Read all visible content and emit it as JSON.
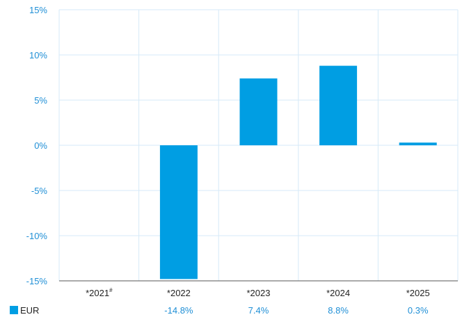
{
  "chart_data": {
    "type": "bar",
    "categories": [
      "*2021",
      "*2022",
      "*2023",
      "*2024",
      "*2025"
    ],
    "category_superscripts": [
      "#",
      "",
      "",
      "",
      ""
    ],
    "series": [
      {
        "name": "EUR",
        "values": [
          null,
          -14.8,
          7.4,
          8.8,
          0.3
        ],
        "labels": [
          "",
          "-14.8%",
          "7.4%",
          "8.8%",
          "0.3%"
        ],
        "color": "#009ee3"
      }
    ],
    "ylim": [
      -15,
      15
    ],
    "yticks": [
      15,
      10,
      5,
      0,
      -5,
      -10,
      -15
    ],
    "ytick_labels": [
      "15%",
      "10%",
      "5%",
      "0%",
      "-5%",
      "-10%",
      "-15%"
    ],
    "grid": true,
    "legend_position": "bottom-left"
  },
  "colors": {
    "bar": "#009ee3",
    "grid": "#d6eaf8",
    "axis_text": "#1f8fd6"
  }
}
